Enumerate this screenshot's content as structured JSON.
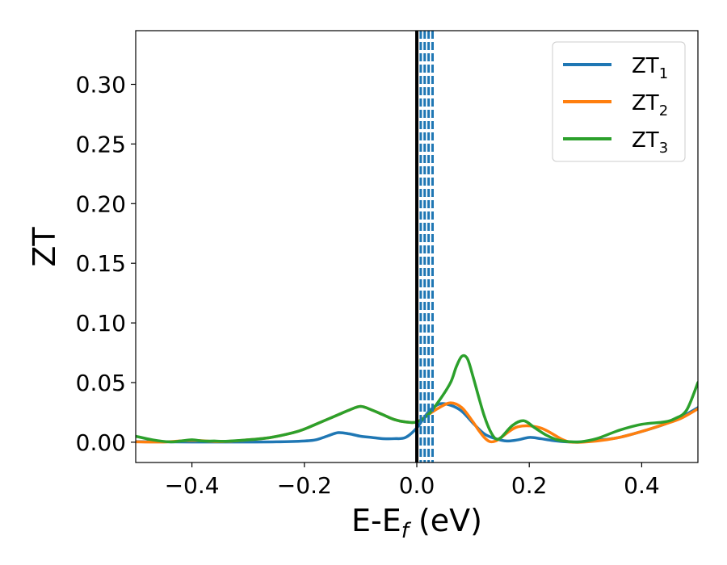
{
  "chart_data": {
    "type": "line",
    "ylabel": "ZT",
    "xlabel": "E-E",
    "xlabel_sub": "f",
    "xlabel_unit": " (eV)",
    "xlim": [
      -0.5,
      0.5
    ],
    "ylim": [
      -0.017,
      0.345
    ],
    "grid": false,
    "legend_position": "top-right",
    "x_ticks": [
      {
        "value": -0.4,
        "label": "−0.4"
      },
      {
        "value": -0.2,
        "label": "−0.2"
      },
      {
        "value": 0.0,
        "label": "0.0"
      },
      {
        "value": 0.2,
        "label": "0.2"
      },
      {
        "value": 0.4,
        "label": "0.4"
      }
    ],
    "y_ticks": [
      {
        "value": 0.0,
        "label": "0.00"
      },
      {
        "value": 0.05,
        "label": "0.05"
      },
      {
        "value": 0.1,
        "label": "0.10"
      },
      {
        "value": 0.15,
        "label": "0.15"
      },
      {
        "value": 0.2,
        "label": "0.20"
      },
      {
        "value": 0.25,
        "label": "0.25"
      },
      {
        "value": 0.3,
        "label": "0.30"
      }
    ],
    "vertical_lines": [
      {
        "x": 0.0,
        "style": "solid",
        "color": "#000000"
      },
      {
        "x": 0.007,
        "style": "dashed",
        "color": "#1f77b4"
      },
      {
        "x": 0.014,
        "style": "dashed",
        "color": "#1f77b4"
      },
      {
        "x": 0.021,
        "style": "dashed",
        "color": "#1f77b4"
      },
      {
        "x": 0.028,
        "style": "dashed",
        "color": "#1f77b4"
      }
    ],
    "series": [
      {
        "name": "ZT",
        "sub": "1",
        "color": "#1f77b4",
        "x": [
          -0.5,
          -0.45,
          -0.4,
          -0.35,
          -0.3,
          -0.25,
          -0.2,
          -0.18,
          -0.16,
          -0.14,
          -0.12,
          -0.1,
          -0.08,
          -0.06,
          -0.04,
          -0.02,
          0.0,
          0.02,
          0.04,
          0.06,
          0.08,
          0.1,
          0.12,
          0.14,
          0.16,
          0.18,
          0.2,
          0.22,
          0.24,
          0.26,
          0.28,
          0.3,
          0.33,
          0.36,
          0.4,
          0.44,
          0.47,
          0.5
        ],
        "y": [
          0.0005,
          0.0003,
          0.0002,
          0.0002,
          0.0002,
          0.0003,
          0.001,
          0.002,
          0.005,
          0.008,
          0.007,
          0.005,
          0.004,
          0.003,
          0.003,
          0.004,
          0.012,
          0.025,
          0.032,
          0.031,
          0.026,
          0.016,
          0.007,
          0.003,
          0.001,
          0.002,
          0.004,
          0.003,
          0.0015,
          0.0005,
          0.0002,
          0.0005,
          0.002,
          0.004,
          0.009,
          0.015,
          0.021,
          0.029
        ]
      },
      {
        "name": "ZT",
        "sub": "2",
        "color": "#ff7f0e",
        "x": [
          -0.5,
          -0.45,
          -0.4,
          -0.35,
          -0.3,
          -0.26,
          -0.22,
          -0.2,
          -0.18,
          -0.16,
          -0.14,
          -0.12,
          -0.1,
          -0.08,
          -0.06,
          -0.04,
          -0.02,
          0.0,
          0.02,
          0.04,
          0.06,
          0.08,
          0.1,
          0.11,
          0.12,
          0.13,
          0.14,
          0.15,
          0.18,
          0.22,
          0.26,
          0.28,
          0.32,
          0.36,
          0.4,
          0.44,
          0.47,
          0.5
        ],
        "y": [
          0.0003,
          0.0002,
          0.0015,
          0.0005,
          0.002,
          0.004,
          0.008,
          0.011,
          0.015,
          0.019,
          0.023,
          0.027,
          0.03,
          0.027,
          0.023,
          0.019,
          0.017,
          0.017,
          0.023,
          0.029,
          0.033,
          0.029,
          0.017,
          0.01,
          0.004,
          0.0005,
          0.001,
          0.004,
          0.013,
          0.012,
          0.002,
          0.0,
          0.001,
          0.004,
          0.009,
          0.015,
          0.02,
          0.028
        ]
      },
      {
        "name": "ZT",
        "sub": "3",
        "color": "#2ca02c",
        "x": [
          -0.5,
          -0.47,
          -0.44,
          -0.42,
          -0.4,
          -0.38,
          -0.36,
          -0.34,
          -0.3,
          -0.26,
          -0.22,
          -0.2,
          -0.18,
          -0.16,
          -0.14,
          -0.12,
          -0.1,
          -0.08,
          -0.06,
          -0.04,
          -0.02,
          0.0,
          0.02,
          0.04,
          0.06,
          0.07,
          0.08,
          0.09,
          0.1,
          0.11,
          0.12,
          0.13,
          0.14,
          0.15,
          0.17,
          0.19,
          0.21,
          0.23,
          0.25,
          0.27,
          0.29,
          0.32,
          0.36,
          0.4,
          0.44,
          0.46,
          0.48,
          0.5
        ],
        "y": [
          0.005,
          0.002,
          0.0003,
          0.001,
          0.002,
          0.001,
          0.001,
          0.0008,
          0.002,
          0.004,
          0.008,
          0.011,
          0.015,
          0.019,
          0.023,
          0.027,
          0.03,
          0.027,
          0.023,
          0.019,
          0.017,
          0.017,
          0.023,
          0.035,
          0.05,
          0.063,
          0.072,
          0.07,
          0.055,
          0.038,
          0.022,
          0.01,
          0.003,
          0.004,
          0.014,
          0.018,
          0.012,
          0.006,
          0.002,
          0.0005,
          0.0003,
          0.003,
          0.01,
          0.015,
          0.017,
          0.02,
          0.027,
          0.05
        ]
      }
    ]
  }
}
